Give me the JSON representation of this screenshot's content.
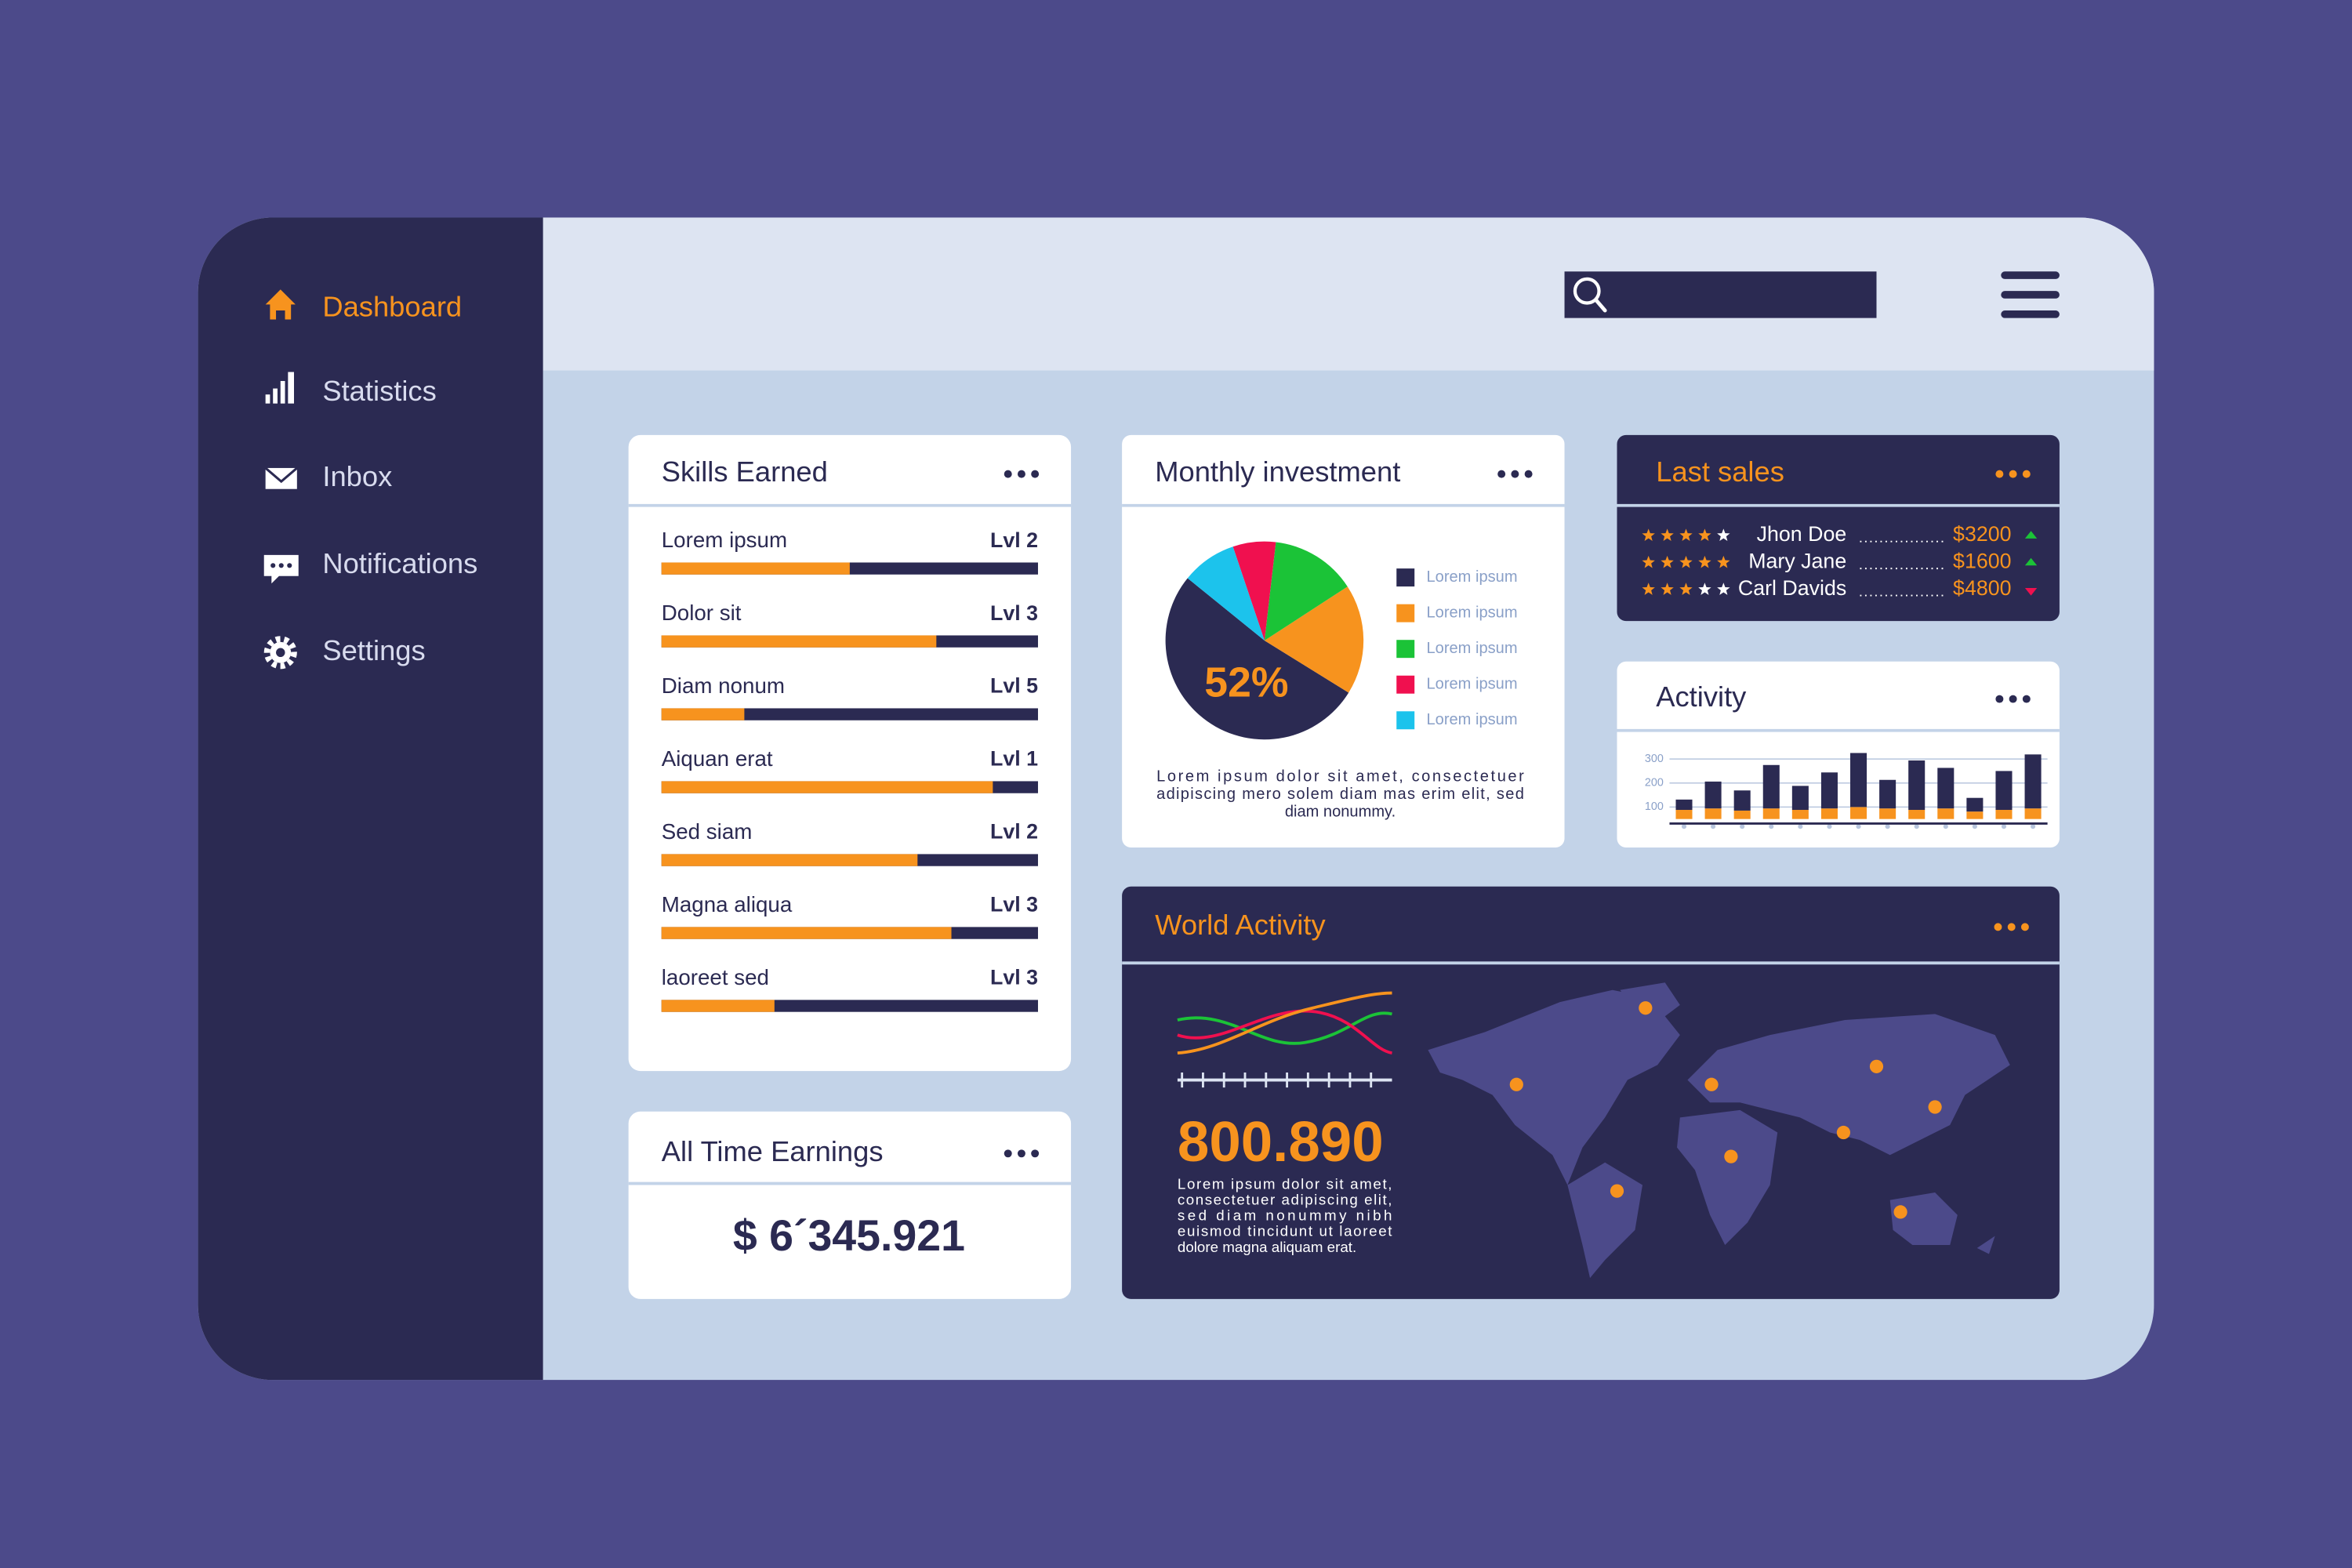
{
  "sidebar": {
    "nav": [
      "Dashboard",
      "Statistics",
      "Inbox",
      "Notifications",
      "Settings"
    ],
    "active": 0
  },
  "skills": {
    "title": "Skills Earned",
    "items": [
      {
        "name": "Lorem ipsum",
        "level": "Lvl 2",
        "progress": 50
      },
      {
        "name": "Dolor sit",
        "level": "Lvl 3",
        "progress": 73
      },
      {
        "name": "Diam nonum",
        "level": "Lvl 5",
        "progress": 22
      },
      {
        "name": "Aiquan erat",
        "level": "Lvl 1",
        "progress": 88
      },
      {
        "name": "Sed siam",
        "level": "Lvl 2",
        "progress": 68
      },
      {
        "name": "Magna aliqua",
        "level": "Lvl 3",
        "progress": 77
      },
      {
        "name": "laoreet sed",
        "level": "Lvl 3",
        "progress": 30
      }
    ]
  },
  "earnings": {
    "title": "All Time Earnings",
    "amount": "$ 6´345.921"
  },
  "investment": {
    "type": "pie",
    "title": "Monthly investment",
    "categories": [
      "Lorem ipsum",
      "Lorem ipsum",
      "Lorem ipsum",
      "Lorem ipsum",
      "Lorem ipsum"
    ],
    "values": [
      52,
      18,
      14,
      7,
      9
    ],
    "value_labels": [
      "52%",
      null,
      null,
      null,
      null
    ],
    "colors": [
      "#2b2a52",
      "#f7931e",
      "#1bc337",
      "#f0104f",
      "#1cc3ec"
    ],
    "note_lines": [
      "Lorem ipsum dolor sit amet, consectetuer",
      "adipiscing mero solem diam mas erim elit, sed",
      "diam nonummy."
    ]
  },
  "last_sales": {
    "title": "Last sales",
    "rows": [
      {
        "rating": 4,
        "name": "Jhon Doe",
        "amount": "$3200",
        "trend": "up"
      },
      {
        "rating": 5,
        "name": "Mary Jane",
        "amount": "$1600",
        "trend": "up"
      },
      {
        "rating": 3,
        "name": "Carl Davids",
        "amount": "$4800",
        "trend": "down"
      }
    ]
  },
  "activity": {
    "type": "bar",
    "title": "Activity",
    "stacked": true,
    "grid": true,
    "ylim": [
      50,
      350
    ],
    "yticks": [
      100,
      200,
      300
    ],
    "series": [
      {
        "color": "#f7931e",
        "values": [
          38,
          44,
          35,
          44,
          38,
          44,
          50,
          44,
          38,
          44,
          31,
          38,
          44
        ]
      },
      {
        "color": "#2b2a52",
        "values": [
          43,
          112,
          84,
          181,
          100,
          150,
          225,
          119,
          206,
          169,
          57,
          162,
          225
        ]
      }
    ]
  },
  "world": {
    "title": "World Activity",
    "value": "800.890",
    "note_lines": [
      "Lorem ipsum dolor sit amet,",
      "consectetuer adipiscing elit,",
      "sed diam nonummy nibh",
      "euismod tincidunt ut laoreet",
      "dolore magna aliquam erat."
    ]
  }
}
